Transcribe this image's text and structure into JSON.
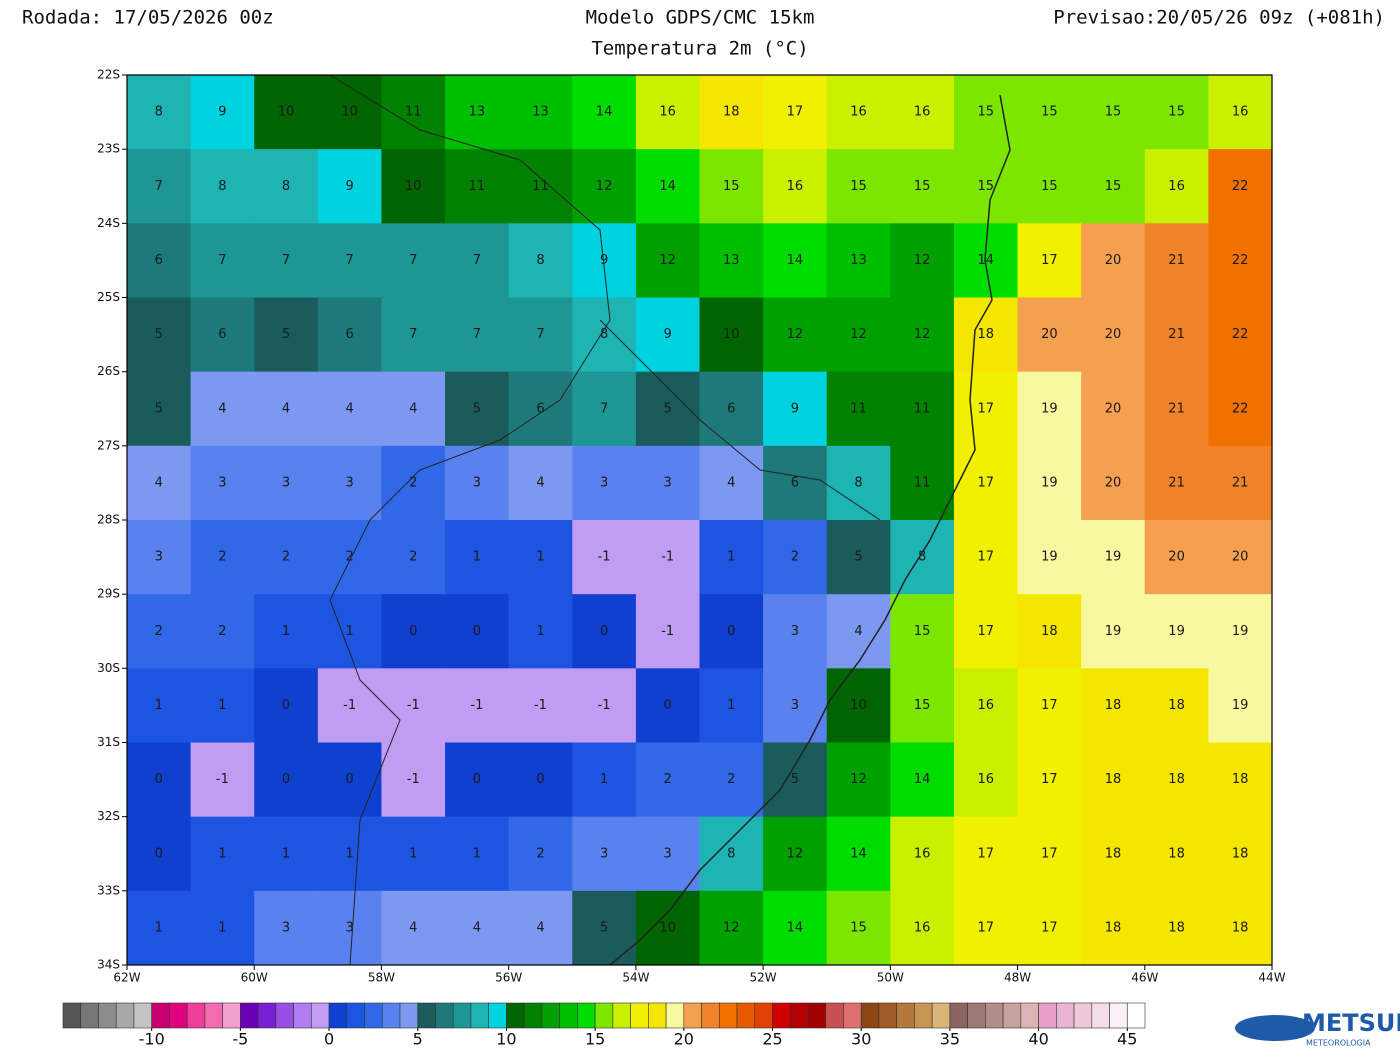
{
  "header": {
    "run": "Rodada: 17/05/2026 00z",
    "model": "Modelo GDPS/CMC 15km",
    "variable": "Temperatura 2m (°C)",
    "forecast": "Previsao:20/05/26 09z (+081h)"
  },
  "map": {
    "lat_labels": [
      "22S",
      "23S",
      "24S",
      "25S",
      "26S",
      "27S",
      "28S",
      "29S",
      "30S",
      "31S",
      "32S",
      "33S",
      "34S"
    ],
    "lon_labels": [
      "62W",
      "60W",
      "58W",
      "56W",
      "54W",
      "52W",
      "50W",
      "48W",
      "46W",
      "44W"
    ],
    "field": [
      [
        8,
        9,
        10,
        10,
        11,
        13,
        13,
        14,
        16,
        18,
        17,
        16,
        16,
        15,
        15,
        15,
        15,
        16
      ],
      [
        7,
        8,
        8,
        9,
        10,
        11,
        11,
        12,
        14,
        15,
        16,
        15,
        15,
        15,
        15,
        15,
        16,
        22
      ],
      [
        6,
        7,
        7,
        7,
        7,
        7,
        8,
        9,
        12,
        13,
        14,
        13,
        12,
        14,
        17,
        20,
        21,
        22
      ],
      [
        5,
        6,
        5,
        6,
        7,
        7,
        7,
        8,
        9,
        10,
        12,
        12,
        12,
        18,
        20,
        20,
        21,
        22
      ],
      [
        5,
        4,
        4,
        4,
        4,
        5,
        6,
        7,
        5,
        6,
        9,
        11,
        11,
        17,
        19,
        20,
        21,
        22
      ],
      [
        4,
        3,
        3,
        3,
        2,
        3,
        4,
        3,
        3,
        4,
        6,
        8,
        11,
        17,
        19,
        20,
        21,
        21
      ],
      [
        3,
        2,
        2,
        2,
        2,
        1,
        1,
        -1,
        -1,
        1,
        2,
        5,
        8,
        17,
        19,
        19,
        20,
        20
      ],
      [
        2,
        2,
        1,
        1,
        0,
        0,
        1,
        0,
        -1,
        0,
        3,
        4,
        15,
        17,
        18,
        19,
        19,
        19
      ],
      [
        1,
        1,
        0,
        -1,
        -1,
        -1,
        -1,
        -1,
        0,
        1,
        3,
        10,
        15,
        16,
        17,
        18,
        18,
        19
      ],
      [
        0,
        -1,
        0,
        0,
        -1,
        0,
        0,
        1,
        2,
        2,
        5,
        12,
        14,
        16,
        17,
        18,
        18,
        18
      ],
      [
        0,
        1,
        1,
        1,
        1,
        1,
        2,
        3,
        3,
        8,
        12,
        14,
        16,
        17,
        17,
        18,
        18,
        18
      ],
      [
        1,
        1,
        3,
        3,
        4,
        4,
        4,
        5,
        10,
        12,
        14,
        15,
        16,
        17,
        17,
        18,
        18,
        18
      ]
    ]
  },
  "colorbar": {
    "range": [
      -15,
      46
    ],
    "ticks": [
      -10,
      -5,
      0,
      5,
      10,
      15,
      20,
      25,
      30,
      35,
      40,
      45
    ],
    "colors": [
      "#555555",
      "#777777",
      "#8c8c8c",
      "#a8a8a8",
      "#c4c4c4",
      "#c8006e",
      "#e0007f",
      "#f03c9a",
      "#f36cb2",
      "#f4a0cc",
      "#6a00b4",
      "#7a1ed2",
      "#9650e6",
      "#b27cf0",
      "#c09cf2",
      "#1040d0",
      "#1e55e0",
      "#3068e8",
      "#5a82ee",
      "#7c98f0",
      "#1a5c5c",
      "#1e7a7a",
      "#1e9696",
      "#1eb4b4",
      "#00d2e0",
      "#006400",
      "#008200",
      "#00a000",
      "#00be00",
      "#00dc00",
      "#7ce600",
      "#c8f000",
      "#f0f000",
      "#f5e600",
      "#f8f8a0",
      "#f5a050",
      "#f08228",
      "#f07000",
      "#e85a00",
      "#e04000",
      "#d00000",
      "#b40000",
      "#a00000",
      "#c85050",
      "#e07070",
      "#8c4614",
      "#a05a28",
      "#b4783c",
      "#c89650",
      "#dcb478",
      "#8c6464",
      "#a07878",
      "#b48c8c",
      "#c8a0a0",
      "#dcb4b4",
      "#e6a0c8",
      "#ebb4d2",
      "#f0c8dc",
      "#f5dce6",
      "#faf0f5",
      "#ffffff"
    ]
  },
  "logo": {
    "name": "METSUL",
    "tagline": "METEOROLOGIA"
  }
}
